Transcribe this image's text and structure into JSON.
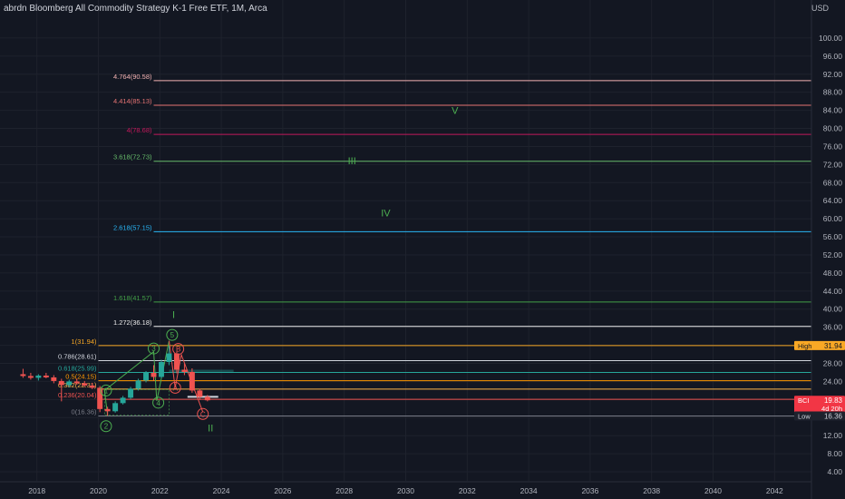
{
  "header": {
    "title": "abrdn Bloomberg All Commodity Strategy K-1 Free ETF, 1M, Arca",
    "currency": "USD"
  },
  "chart_data": {
    "type": "candlestick",
    "symbol": "BCI",
    "interval": "1M",
    "x_range": [
      2016.8,
      2043.2
    ],
    "y_range": [
      2,
      104
    ],
    "x_ticks": [
      2018,
      2020,
      2022,
      2024,
      2026,
      2028,
      2030,
      2032,
      2034,
      2036,
      2038,
      2040,
      2042
    ],
    "y_ticks": [
      4,
      8,
      12,
      16,
      20,
      24,
      28,
      32,
      36,
      40,
      44,
      48,
      52,
      56,
      60,
      64,
      68,
      72,
      76,
      80,
      84,
      88,
      92,
      96,
      100
    ],
    "candles": [
      {
        "x": 2017.55,
        "o": 25.6,
        "h": 26.8,
        "l": 24.8,
        "c": 25.2
      },
      {
        "x": 2017.8,
        "o": 25.2,
        "h": 25.9,
        "l": 24.4,
        "c": 24.8
      },
      {
        "x": 2018.05,
        "o": 24.8,
        "h": 25.6,
        "l": 24.2,
        "c": 25.3
      },
      {
        "x": 2018.3,
        "o": 25.3,
        "h": 25.9,
        "l": 24.7,
        "c": 24.9
      },
      {
        "x": 2018.55,
        "o": 24.9,
        "h": 25.4,
        "l": 23.6,
        "c": 24.1
      },
      {
        "x": 2018.8,
        "o": 24.1,
        "h": 24.6,
        "l": 19.6,
        "c": 23.2
      },
      {
        "x": 2019.05,
        "o": 23.2,
        "h": 24.4,
        "l": 22.7,
        "c": 24.0
      },
      {
        "x": 2019.3,
        "o": 24.0,
        "h": 24.6,
        "l": 23.3,
        "c": 23.6
      },
      {
        "x": 2019.55,
        "o": 23.6,
        "h": 24.1,
        "l": 22.8,
        "c": 23.1
      },
      {
        "x": 2019.8,
        "o": 23.1,
        "h": 23.7,
        "l": 22.3,
        "c": 22.6
      },
      {
        "x": 2020.05,
        "o": 22.6,
        "h": 23.0,
        "l": 17.2,
        "c": 17.9
      },
      {
        "x": 2020.3,
        "o": 17.9,
        "h": 18.4,
        "l": 16.4,
        "c": 17.4
      },
      {
        "x": 2020.55,
        "o": 17.4,
        "h": 19.6,
        "l": 17.1,
        "c": 19.2
      },
      {
        "x": 2020.8,
        "o": 19.2,
        "h": 20.8,
        "l": 18.9,
        "c": 20.4
      },
      {
        "x": 2021.05,
        "o": 20.4,
        "h": 22.8,
        "l": 20.1,
        "c": 22.4
      },
      {
        "x": 2021.3,
        "o": 22.4,
        "h": 24.6,
        "l": 22.0,
        "c": 24.2
      },
      {
        "x": 2021.55,
        "o": 24.2,
        "h": 26.3,
        "l": 23.8,
        "c": 25.9
      },
      {
        "x": 2021.8,
        "o": 25.9,
        "h": 27.6,
        "l": 24.2,
        "c": 25.0
      },
      {
        "x": 2022.05,
        "o": 25.0,
        "h": 28.8,
        "l": 24.7,
        "c": 28.3
      },
      {
        "x": 2022.3,
        "o": 28.3,
        "h": 31.94,
        "l": 27.6,
        "c": 30.2
      },
      {
        "x": 2022.55,
        "o": 30.2,
        "h": 30.6,
        "l": 25.8,
        "c": 26.6
      },
      {
        "x": 2022.8,
        "o": 26.6,
        "h": 27.9,
        "l": 25.4,
        "c": 26.1
      },
      {
        "x": 2023.05,
        "o": 26.1,
        "h": 26.9,
        "l": 21.5,
        "c": 22.0
      },
      {
        "x": 2023.3,
        "o": 22.0,
        "h": 22.4,
        "l": 19.9,
        "c": 20.6
      },
      {
        "x": 2023.55,
        "o": 20.6,
        "h": 21.0,
        "l": 19.6,
        "c": 19.83
      }
    ],
    "fib_levels": [
      {
        "label": "4.764(90.58)",
        "value": 90.58,
        "color": "#f3b2b2"
      },
      {
        "label": "4.414(85.13)",
        "value": 85.13,
        "color": "#e57373"
      },
      {
        "label": "4(78.68)",
        "value": 78.68,
        "color": "#c2185b"
      },
      {
        "label": "3.618(72.73)",
        "value": 72.73,
        "color": "#66bb6a"
      },
      {
        "label": "2.618(57.15)",
        "value": 57.15,
        "color": "#29b6f6"
      },
      {
        "label": "1.618(41.57)",
        "value": 41.57,
        "color": "#43a047"
      },
      {
        "label": "1.272(36.18)",
        "value": 36.18,
        "color": "#eeeeee"
      },
      {
        "label": "1(31.94)",
        "value": 31.94,
        "color": "#f9a825"
      },
      {
        "label": "0.786(28.61)",
        "value": 28.61,
        "color": "#d1d4dc"
      },
      {
        "label": "0.618(25.99)",
        "value": 25.99,
        "color": "#26a69a"
      },
      {
        "label": "0.5(24.15)",
        "value": 24.15,
        "color": "#ff9800"
      },
      {
        "label": "0.382(22.31)",
        "value": 22.31,
        "color": "#ffb74d"
      },
      {
        "label": "0.236(20.04)",
        "value": 20.04,
        "color": "#ef5350"
      },
      {
        "label": "0(16.36)",
        "value": 16.36,
        "color": "#787b86"
      }
    ],
    "wave_labels": [
      {
        "text": "V",
        "x": 2031.6,
        "y": 84.0,
        "color": "#4caf50",
        "circled": false
      },
      {
        "text": "III",
        "x": 2028.25,
        "y": 72.9,
        "color": "#4caf50",
        "circled": false
      },
      {
        "text": "IV",
        "x": 2029.35,
        "y": 61.3,
        "color": "#4caf50",
        "circled": false
      },
      {
        "text": "I",
        "x": 2022.45,
        "y": 38.8,
        "color": "#4caf50",
        "circled": false
      },
      {
        "text": "II",
        "x": 2023.65,
        "y": 13.7,
        "color": "#4caf50",
        "circled": false
      },
      {
        "text": "5",
        "x": 2022.4,
        "y": 34.3,
        "color": "#4caf50",
        "circled": true
      },
      {
        "text": "3",
        "x": 2021.8,
        "y": 31.3,
        "color": "#4caf50",
        "circled": true
      },
      {
        "text": "1",
        "x": 2020.25,
        "y": 22.0,
        "color": "#4caf50",
        "circled": true
      },
      {
        "text": "4",
        "x": 2021.95,
        "y": 19.3,
        "color": "#4caf50",
        "circled": true
      },
      {
        "text": "2",
        "x": 2020.25,
        "y": 14.1,
        "color": "#4caf50",
        "circled": true
      },
      {
        "text": "B",
        "x": 2022.6,
        "y": 31.2,
        "color": "#ef5350",
        "circled": true
      },
      {
        "text": "A",
        "x": 2022.5,
        "y": 22.6,
        "color": "#ef5350",
        "circled": true
      },
      {
        "text": "C",
        "x": 2023.4,
        "y": 16.8,
        "color": "#ef5350",
        "circled": true
      }
    ],
    "wave_path_green": [
      [
        2020.3,
        16.4
      ],
      [
        2020.2,
        22.0
      ],
      [
        2021.8,
        30.6
      ],
      [
        2021.9,
        19.7
      ],
      [
        2022.3,
        33.0
      ]
    ],
    "wave_path_red": [
      [
        2022.3,
        33.0
      ],
      [
        2022.5,
        22.6
      ],
      [
        2022.7,
        29.9
      ],
      [
        2023.4,
        17.2
      ]
    ],
    "price_badges": [
      {
        "label": "High",
        "value": "31.94",
        "y": 31.94,
        "bg": "#f9a825",
        "fg": "#131722"
      },
      {
        "label": "BCI",
        "value": "19.83",
        "sub": "4d 20h",
        "y": 19.83,
        "bg": "#f23645",
        "fg": "#ffffff"
      },
      {
        "label": "Low",
        "value": "16.36",
        "y": 16.36,
        "bg": "#1e222d",
        "fg": "#d1d4dc"
      }
    ]
  }
}
